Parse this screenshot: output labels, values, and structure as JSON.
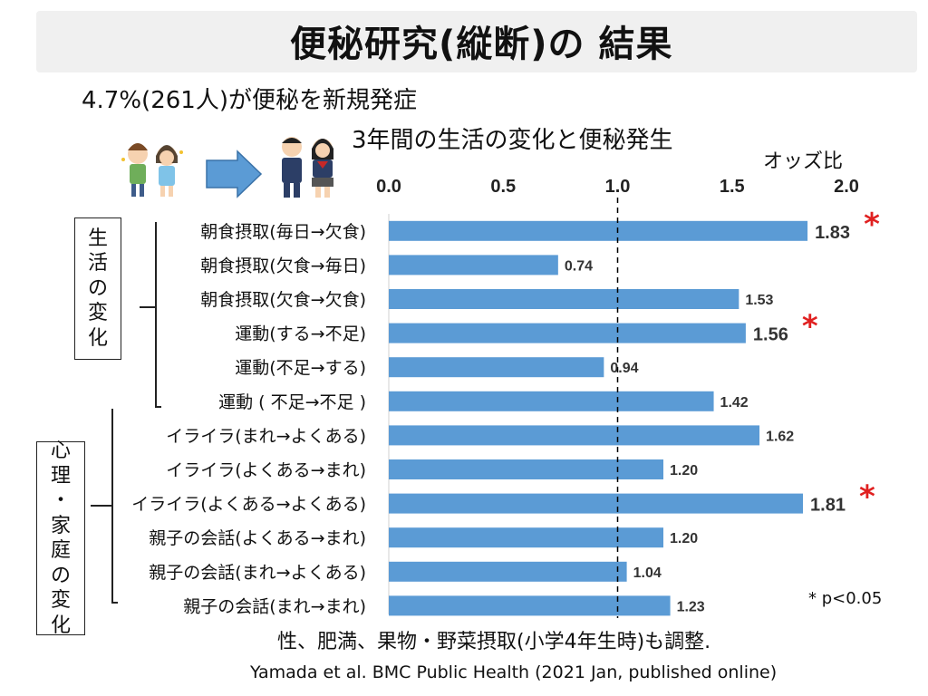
{
  "page": {
    "title": "便秘研究(縦断)の 結果",
    "headline": "4.7%(261人)が便秘を新規発症",
    "subtitle": "3年間の生活の変化と便秘発生",
    "axis_title": "オッズ比",
    "footnote": "* p<0.05",
    "adjust_note": "性、肥満、果物・野菜摂取(小学4年生時)も調整.",
    "citation": "Yamada et al. BMC Public Health (2021 Jan, published online)"
  },
  "groups": [
    {
      "label_chars": [
        "生",
        "活",
        "の",
        "変",
        "化"
      ]
    },
    {
      "label_chars": [
        "心",
        "理",
        "・",
        "家",
        "庭",
        "の",
        "変",
        "化"
      ]
    }
  ],
  "colors": {
    "bar": "#5b9bd5",
    "significance": "#e02020",
    "reference_line": "#000000"
  },
  "icons": [
    "children-illustration",
    "arrow-right-icon",
    "students-illustration"
  ],
  "chart_data": {
    "type": "bar",
    "orientation": "horizontal",
    "title": "3年間の生活の変化と便秘発生",
    "xlabel": "オッズ比",
    "xlim": [
      0,
      2.0
    ],
    "xticks": [
      "0.0",
      "0.5",
      "1.0",
      "1.5",
      "2.0"
    ],
    "reference_line": 1.0,
    "significance_marker": "*",
    "categories": [
      "朝食摂取(毎日→欠食)",
      "朝食摂取(欠食→毎日)",
      "朝食摂取(欠食→欠食)",
      "運動(する→不足)",
      "運動(不足→する)",
      "運動 ( 不足→不足 )",
      "イライラ(まれ→よくある)",
      "イライラ(よくある→まれ)",
      "イライラ(よくある→よくある)",
      "親子の会話(よくある→まれ)",
      "親子の会話(まれ→よくある)",
      "親子の会話(まれ→まれ)"
    ],
    "values": [
      1.83,
      0.74,
      1.53,
      1.56,
      0.94,
      1.42,
      1.62,
      1.2,
      1.81,
      1.2,
      1.04,
      1.23
    ],
    "value_labels": [
      "1.83",
      "0.74",
      "1.53",
      "1.56",
      "0.94",
      "1.42",
      "1.62",
      "1.20",
      "1.81",
      "1.20",
      "1.04",
      "1.23"
    ],
    "significant": [
      true,
      false,
      false,
      true,
      false,
      false,
      false,
      false,
      true,
      false,
      false,
      false
    ]
  }
}
